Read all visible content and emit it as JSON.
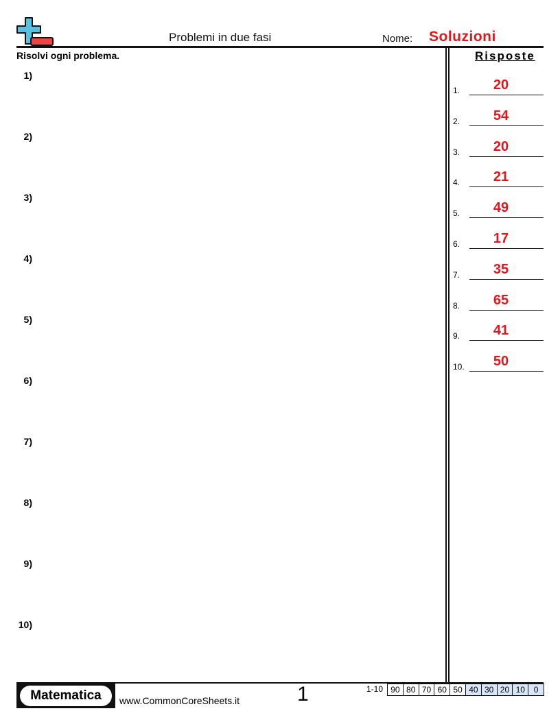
{
  "header": {
    "title": "Problemi in due fasi",
    "name_label": "Nome:",
    "name_value": "Soluzioni"
  },
  "instructions": "Risolvi ogni problema.",
  "answers_heading": "Risposte",
  "problems": [
    "1)",
    "2)",
    "3)",
    "4)",
    "5)",
    "6)",
    "7)",
    "8)",
    "9)",
    "10)"
  ],
  "answers": [
    {
      "n": "1.",
      "v": "20"
    },
    {
      "n": "2.",
      "v": "54"
    },
    {
      "n": "3.",
      "v": "20"
    },
    {
      "n": "4.",
      "v": "21"
    },
    {
      "n": "5.",
      "v": "49"
    },
    {
      "n": "6.",
      "v": "17"
    },
    {
      "n": "7.",
      "v": "35"
    },
    {
      "n": "8.",
      "v": "65"
    },
    {
      "n": "9.",
      "v": "41"
    },
    {
      "n": "10.",
      "v": "50"
    }
  ],
  "footer": {
    "brand": "Matematica",
    "site": "www.CommonCoreSheets.it",
    "page": "1",
    "score_label": "1-10",
    "scores": [
      "90",
      "80",
      "70",
      "60",
      "50",
      "40",
      "30",
      "20",
      "10",
      "0"
    ]
  },
  "colors": {
    "answer": "#e8141b",
    "logo_plus": "#5bbfe0",
    "logo_minus": "#ee4444"
  }
}
